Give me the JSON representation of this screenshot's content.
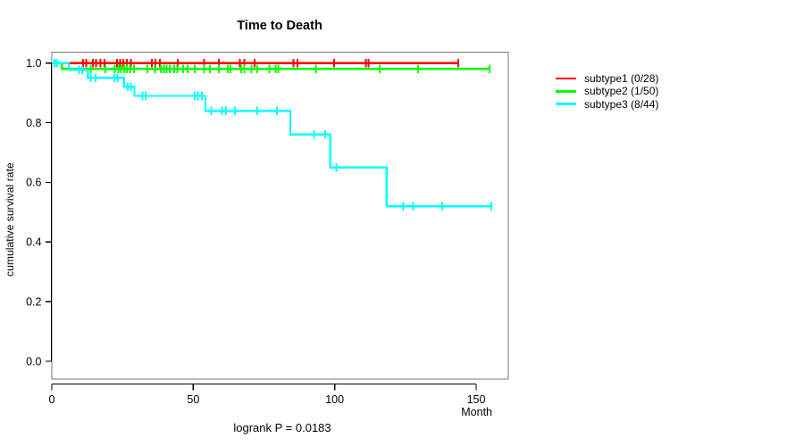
{
  "chart_data": {
    "type": "line",
    "chart_kind": "kaplan_meier_survival_step",
    "title": "Time to Death",
    "xlabel": "Month",
    "ylabel": "cumulative survival rate",
    "annotation": "logrank P = 0.0183",
    "xticks": [
      0,
      50,
      100,
      150
    ],
    "xtick_labels": [
      "0",
      "50",
      "100",
      "150"
    ],
    "yticks": [
      1.0,
      0.8,
      0.6,
      0.4,
      0.2,
      0.0
    ],
    "ytick_labels": [
      "1.0",
      "0.8",
      "0.6",
      "0.4",
      "0.2",
      "0.0"
    ],
    "xlim": [
      0,
      161
    ],
    "ylim": [
      -0.04,
      1.04
    ],
    "grid": false,
    "legend_position": "right-outside",
    "frame_color": "#787878",
    "axis_color": "#000000",
    "series": [
      {
        "name": "subtype1",
        "legend_label": "subtype1 (0/28)",
        "events": 0,
        "n": 28,
        "color": "#ff0000",
        "steps": [
          [
            0,
            1.0
          ]
        ],
        "end_month": 143.8,
        "censor_months": [
          11.0,
          12.2,
          14.6,
          15.7,
          17.2,
          18.6,
          23.1,
          24.1,
          25.2,
          26.6,
          28.0,
          35.4,
          36.7,
          38.2,
          44.5,
          53.8,
          59.1,
          66.4,
          68.0,
          71.7,
          85.4,
          86.9,
          99.8,
          111.0,
          112.0,
          143.7
        ]
      },
      {
        "name": "subtype2",
        "legend_label": "subtype2 (1/50)",
        "events": 1,
        "n": 50,
        "color": "#00ff00",
        "steps": [
          [
            0,
            1.0
          ],
          [
            3.6,
            0.98
          ]
        ],
        "end_month": 155.0,
        "censor_months": [
          13.8,
          19.0,
          22.2,
          23.5,
          24.5,
          25.6,
          26.6,
          27.7,
          29.0,
          33.8,
          36.4,
          38.5,
          39.6,
          40.6,
          41.7,
          43.3,
          44.3,
          46.4,
          48.0,
          50.6,
          53.8,
          55.9,
          59.0,
          62.2,
          63.2,
          66.9,
          68.0,
          70.6,
          72.7,
          76.9,
          79.1,
          80.1,
          93.3,
          115.9,
          129.4,
          154.8
        ]
      },
      {
        "name": "subtype3",
        "legend_label": "subtype3 (8/44)",
        "events": 8,
        "n": 44,
        "color": "#00ffff",
        "steps": [
          [
            0,
            1.0
          ],
          [
            6.0,
            0.977
          ],
          [
            12.7,
            0.95
          ],
          [
            25.5,
            0.92
          ],
          [
            29.2,
            0.89
          ],
          [
            54.3,
            0.84
          ],
          [
            84.3,
            0.76
          ],
          [
            98.5,
            0.65
          ],
          [
            118.4,
            0.52
          ]
        ],
        "end_month": 155.9,
        "censor_months": [
          0.9,
          1.8,
          9.6,
          10.8,
          13.8,
          15.4,
          22.1,
          23.2,
          26.8,
          27.9,
          32.1,
          33.2,
          50.6,
          51.7,
          53.1,
          56.4,
          60.1,
          61.5,
          64.8,
          72.7,
          79.6,
          92.7,
          96.6,
          100.6,
          124.3,
          127.7,
          138.0,
          155.4
        ]
      }
    ]
  }
}
